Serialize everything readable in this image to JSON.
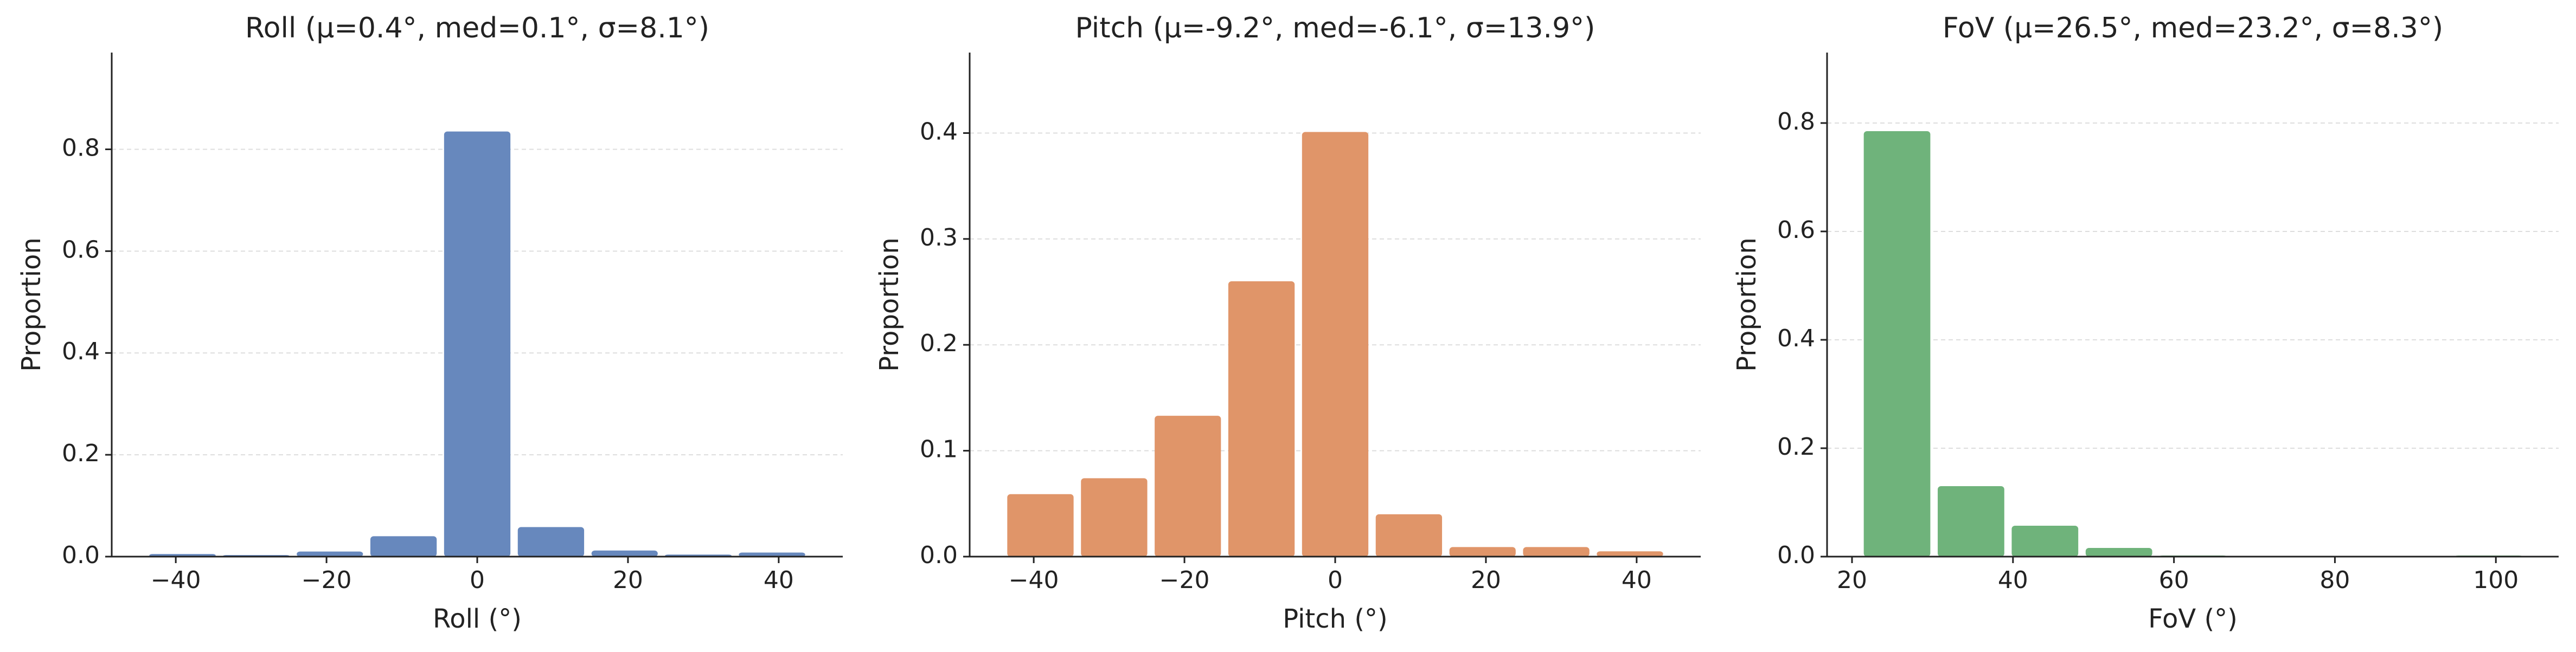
{
  "chart_data": [
    {
      "type": "histogram",
      "title": "Roll  (μ=0.4°, med=0.1°, σ=8.1°)",
      "x_label": "Roll (°)",
      "y_label": "Proportion",
      "color": "#6788bd",
      "bins": [
        -44,
        -34.22,
        -24.44,
        -14.67,
        -4.89,
        4.89,
        14.67,
        24.44,
        34.22,
        44
      ],
      "values": [
        0.005,
        0.003,
        0.01,
        0.04,
        0.835,
        0.058,
        0.012,
        0.004,
        0.008
      ],
      "xlim": [
        -48.5,
        48.5
      ],
      "ylim": [
        0,
        0.99
      ],
      "xticks": [
        {
          "value": -40,
          "label": "−40"
        },
        {
          "value": -20,
          "label": "−20"
        },
        0,
        20,
        40
      ],
      "yticks": [
        {
          "value": 0,
          "label": "0.0"
        },
        0.2,
        0.4,
        0.6,
        0.8
      ],
      "grid": true
    },
    {
      "type": "histogram",
      "title": "Pitch  (μ=-9.2°, med=-6.1°, σ=13.9°)",
      "x_label": "Pitch (°)",
      "y_label": "Proportion",
      "color": "#e09569",
      "bins": [
        -44,
        -34.22,
        -24.44,
        -14.67,
        -4.89,
        4.89,
        14.67,
        24.44,
        34.22,
        44
      ],
      "values": [
        0.059,
        0.074,
        0.133,
        0.26,
        0.401,
        0.04,
        0.009,
        0.009,
        0.005
      ],
      "xlim": [
        -48.5,
        48.5
      ],
      "ylim": [
        0,
        0.476
      ],
      "xticks": [
        {
          "value": -40,
          "label": "−40"
        },
        {
          "value": -20,
          "label": "−20"
        },
        0,
        20,
        40
      ],
      "yticks": [
        {
          "value": 0,
          "label": "0.0"
        },
        0.1,
        0.2,
        0.3,
        0.4
      ],
      "grid": true
    },
    {
      "type": "histogram",
      "title": "FoV  (μ=26.5°, med=23.2°, σ=8.3°)",
      "x_label": "FoV (°)",
      "y_label": "Proportion",
      "color": "#6fb37b",
      "bins": [
        21,
        30.19,
        39.38,
        48.57,
        57.76,
        66.94,
        76.13,
        85.32,
        94.51,
        103.7
      ],
      "values": [
        0.785,
        0.13,
        0.057,
        0.016,
        0.002,
        0.001,
        0.001,
        0.001,
        0.002
      ],
      "xlim": [
        16.9,
        107.8
      ],
      "ylim": [
        0,
        0.93
      ],
      "xticks": [
        20,
        40,
        60,
        80,
        100
      ],
      "yticks": [
        {
          "value": 0,
          "label": "0.0"
        },
        0.2,
        0.4,
        0.6,
        0.8
      ],
      "grid": true
    }
  ]
}
